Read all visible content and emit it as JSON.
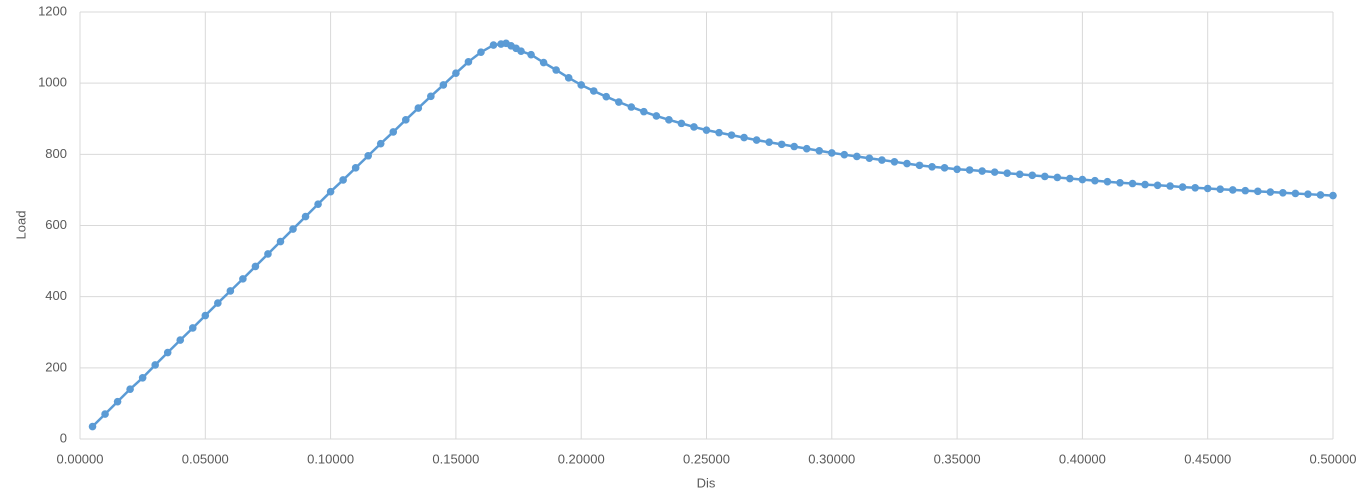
{
  "chart_data": {
    "type": "line",
    "x_label": "Dis",
    "y_label": "Load",
    "color": "#5b9bd5",
    "grid": true,
    "x": [
      0.005,
      0.01,
      0.015,
      0.02,
      0.025,
      0.03,
      0.035,
      0.04,
      0.045,
      0.05,
      0.055,
      0.06,
      0.065,
      0.07,
      0.075,
      0.08,
      0.085,
      0.09,
      0.095,
      0.1,
      0.105,
      0.11,
      0.115,
      0.12,
      0.125,
      0.13,
      0.135,
      0.14,
      0.145,
      0.15,
      0.155,
      0.16,
      0.165,
      0.168,
      0.17,
      0.172,
      0.174,
      0.176,
      0.18,
      0.185,
      0.19,
      0.195,
      0.2,
      0.205,
      0.21,
      0.215,
      0.22,
      0.225,
      0.23,
      0.235,
      0.24,
      0.245,
      0.25,
      0.255,
      0.26,
      0.265,
      0.27,
      0.275,
      0.28,
      0.285,
      0.29,
      0.295,
      0.3,
      0.305,
      0.31,
      0.315,
      0.32,
      0.325,
      0.33,
      0.335,
      0.34,
      0.345,
      0.35,
      0.355,
      0.36,
      0.365,
      0.37,
      0.375,
      0.38,
      0.385,
      0.39,
      0.395,
      0.4,
      0.405,
      0.41,
      0.415,
      0.42,
      0.425,
      0.43,
      0.435,
      0.44,
      0.445,
      0.45,
      0.455,
      0.46,
      0.465,
      0.47,
      0.475,
      0.48,
      0.485,
      0.49,
      0.495,
      0.5
    ],
    "values": [
      35,
      70,
      105,
      140,
      172,
      208,
      243,
      278,
      312,
      347,
      382,
      416,
      450,
      485,
      520,
      555,
      590,
      625,
      660,
      695,
      728,
      762,
      796,
      830,
      863,
      897,
      930,
      963,
      995,
      1028,
      1060,
      1087,
      1107,
      1110,
      1112,
      1105,
      1098,
      1090,
      1080,
      1058,
      1037,
      1015,
      995,
      978,
      962,
      947,
      933,
      920,
      908,
      897,
      887,
      877,
      868,
      861,
      854,
      847,
      840,
      834,
      828,
      822,
      816,
      810,
      804,
      799,
      794,
      789,
      784,
      779,
      774,
      769,
      765,
      762,
      758,
      756,
      753,
      750,
      747,
      744,
      741,
      738,
      735,
      732,
      729,
      726,
      723,
      720,
      718,
      715,
      713,
      711,
      708,
      706,
      704,
      702,
      700,
      698,
      696,
      694,
      692,
      690,
      688,
      686,
      684
    ],
    "xlim": [
      0,
      0.5
    ],
    "xticks": [
      {
        "value": 0,
        "label": "0.00000"
      },
      {
        "value": 0.05,
        "label": "0.05000"
      },
      {
        "value": 0.1,
        "label": "0.10000"
      },
      {
        "value": 0.15,
        "label": "0.15000"
      },
      {
        "value": 0.2,
        "label": "0.20000"
      },
      {
        "value": 0.25,
        "label": "0.25000"
      },
      {
        "value": 0.3,
        "label": "0.30000"
      },
      {
        "value": 0.35,
        "label": "0.35000"
      },
      {
        "value": 0.4,
        "label": "0.40000"
      },
      {
        "value": 0.45,
        "label": "0.45000"
      },
      {
        "value": 0.5,
        "label": "0.50000"
      }
    ],
    "ylim": [
      0,
      1200
    ],
    "yticks": [
      0,
      200,
      400,
      600,
      800,
      1000,
      1200
    ]
  }
}
